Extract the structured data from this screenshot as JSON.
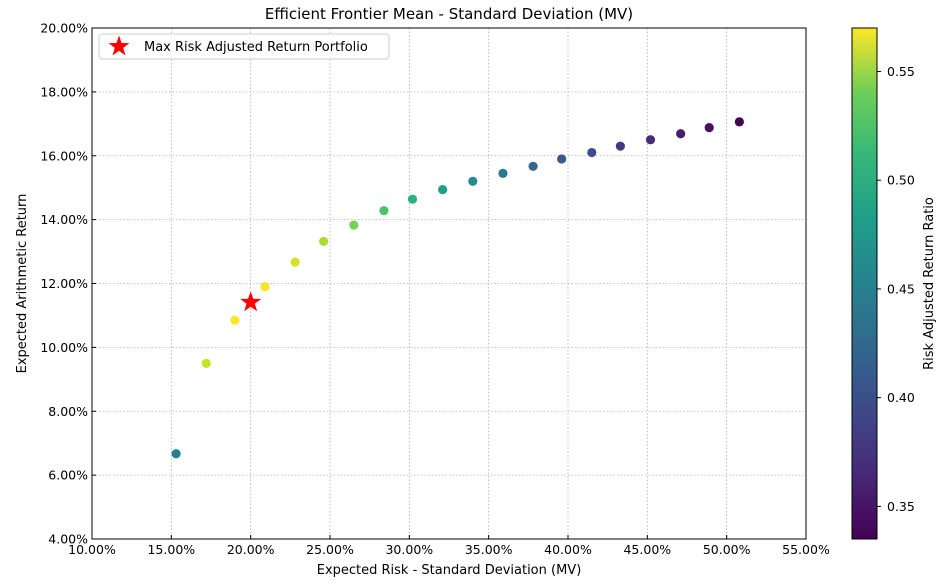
{
  "chart_data": {
    "type": "scatter",
    "title": "Efficient Frontier Mean - Standard Deviation (MV)",
    "xlabel": "Expected Risk - Standard Deviation (MV)",
    "ylabel": "Expected Arithmetic Return",
    "xlim": [
      0.1,
      0.55
    ],
    "ylim": [
      0.04,
      0.2
    ],
    "x_ticks": [
      0.1,
      0.15,
      0.2,
      0.25,
      0.3,
      0.35,
      0.4,
      0.45,
      0.5,
      0.55
    ],
    "x_tick_labels": [
      "10.00%",
      "15.00%",
      "20.00%",
      "25.00%",
      "30.00%",
      "35.00%",
      "40.00%",
      "45.00%",
      "50.00%",
      "55.00%"
    ],
    "y_ticks": [
      0.04,
      0.06,
      0.08,
      0.1,
      0.12,
      0.14,
      0.16,
      0.18,
      0.2
    ],
    "y_tick_labels": [
      "4.00%",
      "6.00%",
      "8.00%",
      "10.00%",
      "12.00%",
      "14.00%",
      "16.00%",
      "18.00%",
      "20.00%"
    ],
    "grid": true,
    "grid_style": "dotted",
    "colormap": "viridis",
    "colorbar": {
      "label": "Risk Adjusted Return Ratio",
      "range": [
        0.335,
        0.57
      ],
      "ticks": [
        0.35,
        0.4,
        0.45,
        0.5,
        0.55
      ],
      "tick_labels": [
        "0.35",
        "0.40",
        "0.45",
        "0.50",
        "0.55"
      ]
    },
    "series": [
      {
        "points": [
          {
            "x": 0.153,
            "y": 0.0667,
            "c": 0.436
          },
          {
            "x": 0.172,
            "y": 0.095,
            "c": 0.552
          },
          {
            "x": 0.19,
            "y": 0.1085,
            "c": 0.569
          },
          {
            "x": 0.209,
            "y": 0.119,
            "c": 0.568
          },
          {
            "x": 0.228,
            "y": 0.1267,
            "c": 0.556
          },
          {
            "x": 0.246,
            "y": 0.1332,
            "c": 0.54
          },
          {
            "x": 0.265,
            "y": 0.1383,
            "c": 0.522
          },
          {
            "x": 0.284,
            "y": 0.1428,
            "c": 0.503
          },
          {
            "x": 0.302,
            "y": 0.1464,
            "c": 0.484
          },
          {
            "x": 0.321,
            "y": 0.1494,
            "c": 0.466
          },
          {
            "x": 0.34,
            "y": 0.152,
            "c": 0.447
          },
          {
            "x": 0.359,
            "y": 0.1545,
            "c": 0.43
          },
          {
            "x": 0.378,
            "y": 0.1567,
            "c": 0.415
          },
          {
            "x": 0.396,
            "y": 0.159,
            "c": 0.401
          },
          {
            "x": 0.415,
            "y": 0.161,
            "c": 0.388
          },
          {
            "x": 0.433,
            "y": 0.163,
            "c": 0.376
          },
          {
            "x": 0.452,
            "y": 0.165,
            "c": 0.365
          },
          {
            "x": 0.471,
            "y": 0.1669,
            "c": 0.354
          },
          {
            "x": 0.489,
            "y": 0.1688,
            "c": 0.345
          },
          {
            "x": 0.508,
            "y": 0.1706,
            "c": 0.336
          }
        ]
      },
      {
        "name": "Max Risk Adjusted Return Portfolio",
        "marker": "star",
        "color": "#ff0000",
        "points": [
          {
            "x": 0.2,
            "y": 0.1141
          }
        ]
      }
    ],
    "legend": {
      "position": "top-left",
      "entries": [
        "Max Risk Adjusted Return Portfolio"
      ]
    }
  }
}
